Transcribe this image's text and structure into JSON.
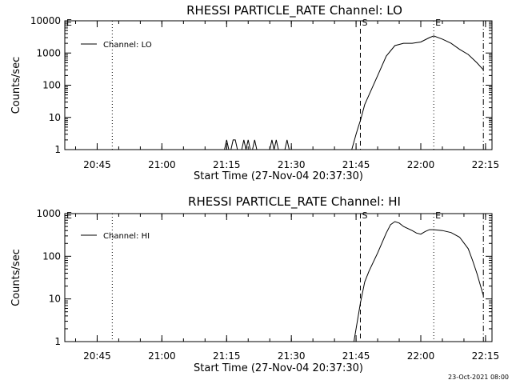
{
  "footer": "23-Oct-2021 08:00",
  "chart_data": [
    {
      "type": "line",
      "title": "RHESSI PARTICLE_RATE Channel: LO",
      "xlabel": "Start Time (27-Nov-04 20:37:30)",
      "ylabel": "Counts/sec",
      "y_scale": "log",
      "xlim": [
        "20:37:30",
        "22:16:30"
      ],
      "ylim": [
        1,
        10000
      ],
      "x_ticks": [
        "20:45",
        "21:00",
        "21:15",
        "21:30",
        "21:45",
        "22:00",
        "22:15"
      ],
      "y_ticks": [
        "1",
        "10",
        "100",
        "1000",
        "10000"
      ],
      "legend": {
        "placement": "top-left",
        "entries": [
          "Channel: LO"
        ]
      },
      "markers": [
        {
          "label": "E",
          "x": "20:37:30",
          "style": "none"
        },
        {
          "label": "",
          "x": "20:48:30",
          "style": "dotted"
        },
        {
          "label": "S",
          "x": "21:46:00",
          "style": "dashed"
        },
        {
          "label": "E",
          "x": "22:03:00",
          "style": "dotted"
        },
        {
          "label": "",
          "x": "22:14:30",
          "style": "dashdot"
        }
      ],
      "series": [
        {
          "name": "Channel: LO",
          "x": [
            "21:14:30",
            "21:15:00",
            "21:15:30",
            "21:16:00",
            "21:16:30",
            "21:17:00",
            "21:17:30",
            "21:18:00",
            "21:18:30",
            "21:19:00",
            "21:19:30",
            "21:20:00",
            "21:20:30",
            "21:21:00",
            "21:21:30",
            "21:22:00",
            "21:22:30",
            "21:23:00",
            "21:23:30",
            "21:24:00",
            "21:24:30",
            "21:25:00",
            "21:25:30",
            "21:26:00",
            "21:26:30",
            "21:27:00",
            "21:27:30",
            "21:28:00",
            "21:28:30",
            "21:29:00",
            "21:29:30",
            "21:30:00",
            "21:30:30",
            "21:40:00",
            "21:44:00",
            "21:45:00",
            "21:45:30",
            "21:46:00",
            "21:47:00",
            "21:48:00",
            "21:50:00",
            "21:52:00",
            "21:54:00",
            "21:56:00",
            "21:58:00",
            "22:00:00",
            "22:02:00",
            "22:03:00",
            "22:05:00",
            "22:07:00",
            "22:09:00",
            "22:11:00",
            "22:13:00",
            "22:14:30"
          ],
          "y": [
            1,
            2,
            1,
            1,
            2,
            2,
            1,
            1,
            1,
            2,
            1,
            2,
            1,
            1,
            2,
            1,
            1,
            1,
            1,
            1,
            1,
            1,
            2,
            1,
            2,
            1,
            1,
            1,
            1,
            2,
            1,
            1,
            1,
            1,
            1,
            3,
            5,
            8,
            25,
            50,
            200,
            800,
            1700,
            2000,
            2000,
            2200,
            3000,
            3400,
            2700,
            2000,
            1300,
            900,
            500,
            300
          ]
        }
      ]
    },
    {
      "type": "line",
      "title": "RHESSI PARTICLE_RATE Channel: HI",
      "xlabel": "Start Time (27-Nov-04 20:37:30)",
      "ylabel": "Counts/sec",
      "y_scale": "log",
      "xlim": [
        "20:37:30",
        "22:16:30"
      ],
      "ylim": [
        1,
        1000
      ],
      "x_ticks": [
        "20:45",
        "21:00",
        "21:15",
        "21:30",
        "21:45",
        "22:00",
        "22:15"
      ],
      "y_ticks": [
        "1",
        "10",
        "100",
        "1000"
      ],
      "legend": {
        "placement": "top-left",
        "entries": [
          "Channel: HI"
        ]
      },
      "markers": [
        {
          "label": "E",
          "x": "20:37:30",
          "style": "none"
        },
        {
          "label": "",
          "x": "20:48:30",
          "style": "dotted"
        },
        {
          "label": "S",
          "x": "21:46:00",
          "style": "dashed"
        },
        {
          "label": "E",
          "x": "22:03:00",
          "style": "dotted"
        },
        {
          "label": "",
          "x": "22:14:30",
          "style": "dashdot"
        }
      ],
      "series": [
        {
          "name": "Channel: HI",
          "x": [
            "21:44:30",
            "21:45:00",
            "21:45:30",
            "21:46:00",
            "21:47:00",
            "21:48:00",
            "21:50:00",
            "21:52:00",
            "21:53:00",
            "21:54:00",
            "21:55:00",
            "21:56:00",
            "21:58:00",
            "21:59:00",
            "22:00:00",
            "22:01:00",
            "22:02:00",
            "22:03:00",
            "22:05:00",
            "22:07:00",
            "22:09:00",
            "22:11:00",
            "22:12:00",
            "22:13:00",
            "22:14:00",
            "22:14:30"
          ],
          "y": [
            1,
            2,
            4,
            8,
            25,
            45,
            120,
            350,
            550,
            650,
            600,
            500,
            400,
            350,
            330,
            380,
            420,
            420,
            400,
            360,
            280,
            150,
            80,
            40,
            18,
            12
          ]
        }
      ]
    }
  ]
}
